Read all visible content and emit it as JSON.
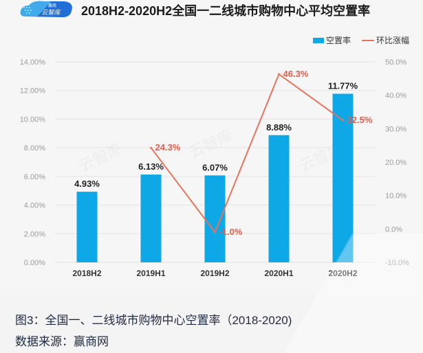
{
  "logo": {
    "text_top": "赢商",
    "text_main": "云智库"
  },
  "colors": {
    "bar": "#0fa8e6",
    "line": "#e8725c",
    "line_label": "#e0604c"
  },
  "chart_data": {
    "type": "bar+line",
    "title": "2018H2-2020H2全国一二线城市购物中心平均空置率",
    "categories": [
      "2018H2",
      "2019H1",
      "2019H2",
      "2020H1",
      "2020H2"
    ],
    "legend": {
      "position": "top-right",
      "entries": [
        "空置率",
        "环比涨幅"
      ]
    },
    "series": [
      {
        "name": "空置率",
        "type": "bar",
        "axis": "left",
        "values": [
          4.93,
          6.13,
          6.07,
          8.88,
          11.77
        ],
        "labels": [
          "4.93%",
          "6.13%",
          "6.07%",
          "8.88%",
          "11.77%"
        ]
      },
      {
        "name": "环比涨幅",
        "type": "line",
        "axis": "right",
        "values": [
          null,
          24.3,
          -1.0,
          46.3,
          32.5
        ],
        "labels": [
          "",
          "24.3%",
          "-1.0%",
          "46.3%",
          "32.5%"
        ]
      }
    ],
    "y_left": {
      "range": [
        0,
        14
      ],
      "ticks": [
        0,
        2,
        4,
        6,
        8,
        10,
        12,
        14
      ],
      "tick_labels": [
        "0.00%",
        "2.00%",
        "4.00%",
        "6.00%",
        "8.00%",
        "10.00%",
        "12.00%",
        "14.00%"
      ]
    },
    "y_right": {
      "range": [
        -10,
        50
      ],
      "ticks": [
        -10,
        0,
        10,
        20,
        30,
        40,
        50
      ],
      "tick_labels": [
        "-10.0%",
        "0.0%",
        "10.0%",
        "20.0%",
        "30.0%",
        "40.0%",
        "50.0%"
      ]
    },
    "grid": true
  },
  "caption": "图3：全国一、二线城市购物中心空置率（2018-2020)",
  "source": "数据来源：赢商网"
}
